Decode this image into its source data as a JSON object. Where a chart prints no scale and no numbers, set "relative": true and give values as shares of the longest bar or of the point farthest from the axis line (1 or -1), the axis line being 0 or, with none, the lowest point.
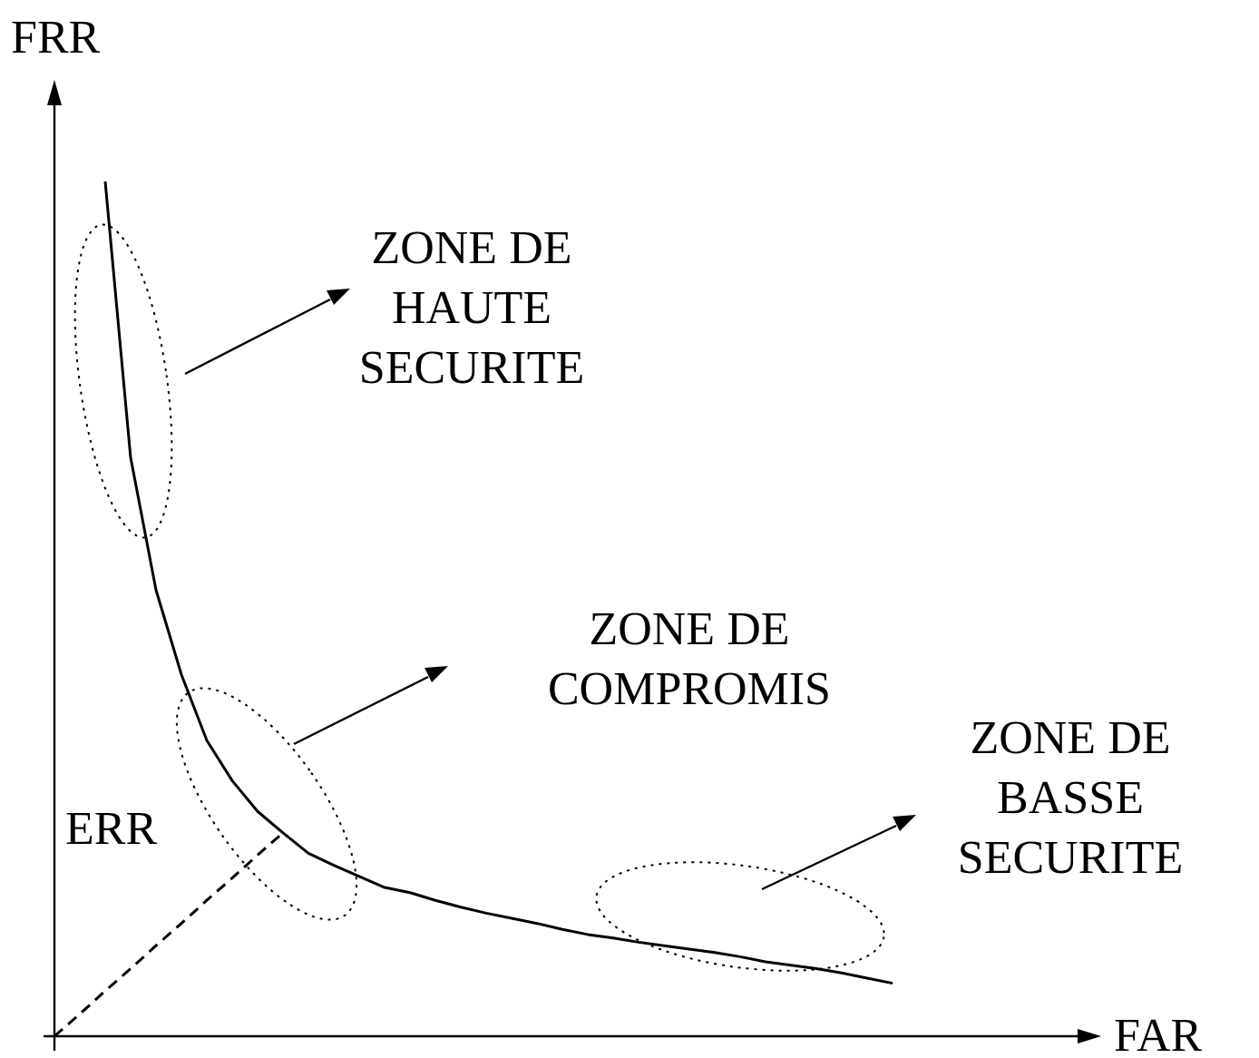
{
  "chart_data": {
    "type": "line",
    "relative": true,
    "xlabel": "FAR",
    "ylabel": "FRR",
    "legend": false,
    "marker": "none",
    "categories": [
      null,
      null,
      null,
      null,
      null,
      null,
      null,
      null,
      null,
      null,
      null,
      null,
      null,
      null,
      null,
      null,
      null,
      null,
      null,
      null,
      null,
      null,
      null,
      null,
      null,
      null,
      null,
      null,
      null,
      null,
      null,
      null,
      null,
      null
    ],
    "series": [
      {
        "color": "#000000",
        "line_style": "solid",
        "values": [
          null,
          null,
          1.0,
          0.677,
          0.522,
          0.423,
          0.346,
          0.299,
          0.263,
          0.238,
          0.214,
          0.2,
          0.187,
          0.174,
          0.168,
          0.159,
          0.151,
          0.144,
          0.138,
          0.132,
          0.125,
          0.119,
          0.115,
          0.11,
          0.106,
          0.102,
          0.098,
          0.093,
          0.087,
          0.083,
          0.079,
          0.074,
          0.068,
          0.062
        ]
      },
      {
        "color": "#000000",
        "line_style": "dashed",
        "values": [
          0,
          0.026,
          0.053,
          0.079,
          0.106,
          0.132,
          0.159,
          0.185,
          0.212,
          0.238,
          null,
          null,
          null,
          null,
          null,
          null,
          null,
          null,
          null,
          null,
          null,
          null,
          null,
          null,
          null,
          null,
          null,
          null,
          null,
          null,
          null,
          null,
          null,
          null
        ]
      }
    ],
    "annotations": [
      "ZONE DE\nHAUTE\nSECURITE",
      "ZONE DE\nCOMPROMIS",
      "ZONE DE\nBASSE\nSECURITE",
      "ERR"
    ]
  }
}
